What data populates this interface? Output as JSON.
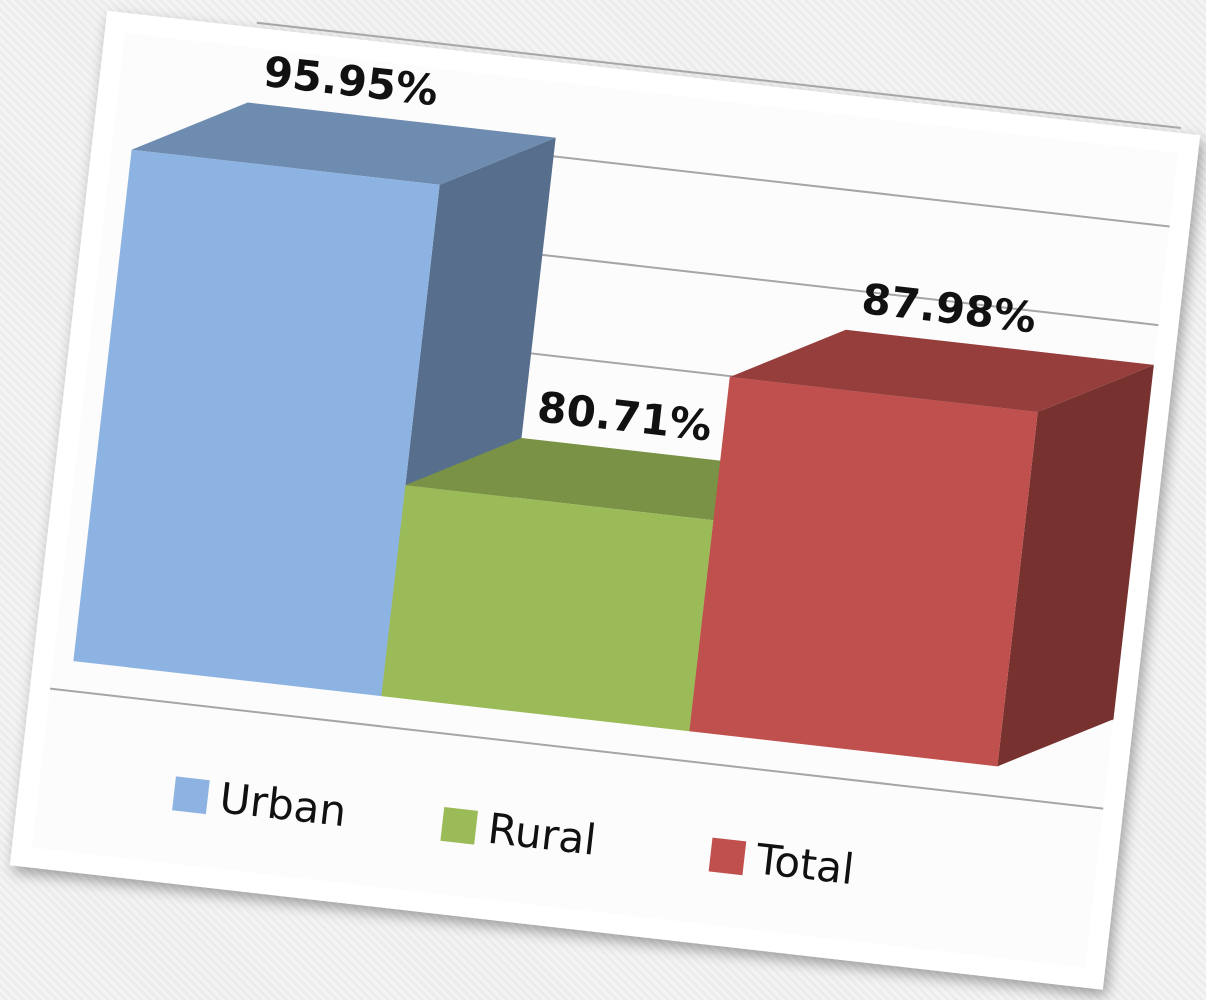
{
  "chart_data": {
    "type": "bar3d",
    "series": [
      {
        "name": "Urban",
        "color": "#8db3e2",
        "values": [
          95.95
        ],
        "value_labels": [
          "95.95%"
        ]
      },
      {
        "name": "Rural",
        "color": "#9bbb59",
        "values": [
          80.71
        ],
        "value_labels": [
          "80.71%"
        ]
      },
      {
        "name": "Total",
        "color": "#c0504d",
        "values": [
          87.98
        ],
        "value_labels": [
          "87.98%"
        ]
      }
    ],
    "ylim": [
      70,
      100
    ],
    "yticks": [
      70,
      75,
      80,
      85,
      90,
      95,
      100
    ],
    "grid": true,
    "legend": "bottom"
  }
}
